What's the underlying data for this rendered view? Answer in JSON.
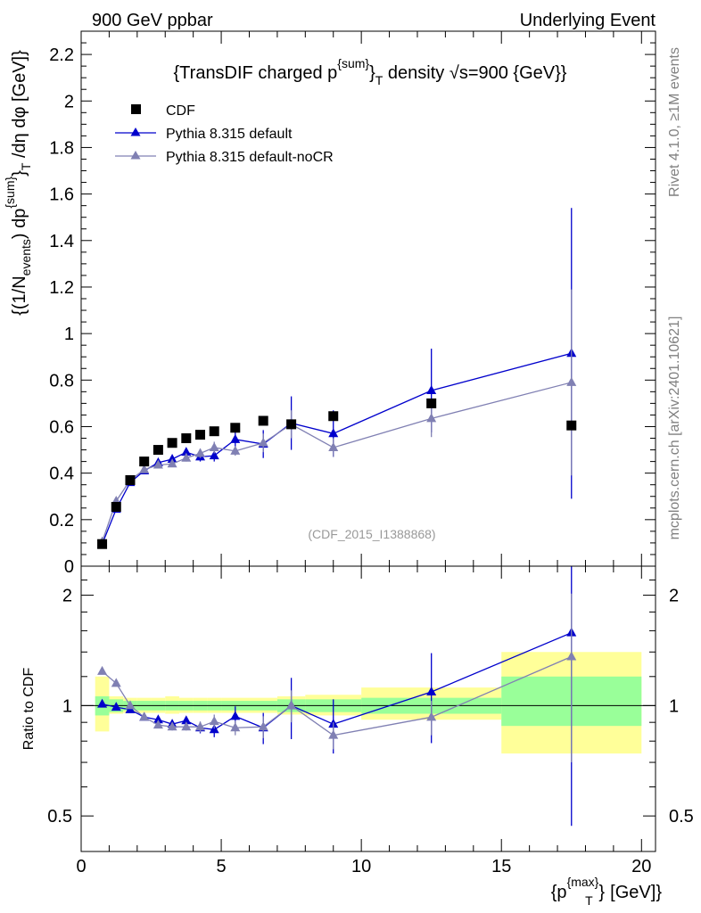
{
  "header": {
    "left": "900 GeV ppbar",
    "right": "Underlying Event"
  },
  "side_text": {
    "rivet": "Rivet 4.1.0, ≥1M events",
    "mcplots": "mcplots.cern.ch [arXiv:2401.10621]"
  },
  "chart_data": [
    {
      "type": "scatter",
      "panel": "main",
      "title": "{TransDIF charged p^{sum}_T density √s=900 {GeV}}",
      "title_parts": {
        "pre": "{TransDIF charged p",
        "sup": "{sum}",
        "mid": "}",
        "sub": "T",
        "post": " density √s=900 {GeV}}"
      },
      "ylabel": "{(1/N_{events}) dp^{sum}_T /dη dφ [GeV]}",
      "ylabel_parts": {
        "a": "{(1/N",
        "a_sub": "events",
        "b": ") dp",
        "b_sup": "{sum}",
        "c": "}",
        "c_sub": "T",
        "d": " /dη  dφ [GeV]}"
      },
      "ylim": [
        0,
        2.3
      ],
      "yticks": [
        0,
        0.2,
        0.4,
        0.6,
        0.8,
        1,
        1.2,
        1.4,
        1.6,
        1.8,
        2,
        2.2
      ],
      "ytick_labels": [
        "0",
        "0.2",
        "0.4",
        "0.6",
        "0.8",
        "1",
        "1.2",
        "1.4",
        "1.6",
        "1.8",
        "2",
        "2.2"
      ],
      "annotation": "(CDF_2015_I1388868)",
      "legend": [
        "CDF",
        "Pythia 8.315 default",
        "Pythia 8.315 default-noCR"
      ],
      "series": [
        {
          "name": "CDF",
          "color": "#000000",
          "marker": "square",
          "x": [
            0.75,
            1.25,
            1.75,
            2.25,
            2.75,
            3.25,
            3.75,
            4.25,
            4.75,
            5.5,
            6.5,
            7.5,
            9.0,
            12.5,
            17.5
          ],
          "y": [
            0.095,
            0.255,
            0.37,
            0.45,
            0.5,
            0.53,
            0.55,
            0.565,
            0.58,
            0.595,
            0.625,
            0.61,
            0.645,
            0.7,
            0.605
          ]
        },
        {
          "name": "Pythia 8.315 default",
          "color": "#0000cc",
          "marker": "triangle",
          "x": [
            0.75,
            1.25,
            1.75,
            2.25,
            2.75,
            3.25,
            3.75,
            4.25,
            4.75,
            5.5,
            6.5,
            7.5,
            9.0,
            12.5,
            17.5
          ],
          "y": [
            0.095,
            0.245,
            0.36,
            0.41,
            0.445,
            0.46,
            0.49,
            0.47,
            0.475,
            0.545,
            0.525,
            0.615,
            0.57,
            0.755,
            0.915
          ],
          "err": [
            0.005,
            0.01,
            0.01,
            0.01,
            0.01,
            0.01,
            0.015,
            0.02,
            0.025,
            0.035,
            0.06,
            0.115,
            0.1,
            0.18,
            0.625
          ]
        },
        {
          "name": "Pythia 8.315 default-noCR",
          "color": "#8080b3",
          "marker": "triangle",
          "x": [
            0.75,
            1.25,
            1.75,
            2.25,
            2.75,
            3.25,
            3.75,
            4.25,
            4.75,
            5.5,
            6.5,
            7.5,
            9.0,
            12.5,
            17.5
          ],
          "y": [
            0.105,
            0.28,
            0.37,
            0.415,
            0.435,
            0.44,
            0.465,
            0.485,
            0.51,
            0.495,
            0.53,
            0.61,
            0.51,
            0.635,
            0.79
          ],
          "err": [
            0.005,
            0.01,
            0.01,
            0.01,
            0.01,
            0.01,
            0.015,
            0.02,
            0.025,
            0.02,
            0.04,
            0.06,
            0.04,
            0.08,
            0.4
          ]
        }
      ]
    },
    {
      "type": "scatter",
      "panel": "ratio",
      "ylabel": "Ratio to CDF",
      "yscale": "log",
      "ylim": [
        0.4,
        2.4
      ],
      "yticks": [
        0.5,
        1,
        2
      ],
      "ytick_labels": [
        "0.5",
        "1",
        "2"
      ],
      "xlabel": "{p_T^{max}} [GeV]}",
      "xlabel_parts": {
        "pre": "{p",
        "sup": "{max}",
        "mid": "}",
        "sub": "T",
        "post": " [GeV]}"
      },
      "xlim": [
        0,
        20.5
      ],
      "xticks": [
        0,
        5,
        10,
        15,
        20
      ],
      "xtick_labels": [
        "0",
        "5",
        "10",
        "15",
        "20"
      ],
      "bands": {
        "edges": [
          0.5,
          1,
          1.5,
          2,
          2.5,
          3,
          3.5,
          4,
          4.5,
          5,
          6,
          7,
          8,
          10,
          15,
          20
        ],
        "stat_lo": [
          0.94,
          0.96,
          0.97,
          0.97,
          0.97,
          0.97,
          0.97,
          0.97,
          0.97,
          0.97,
          0.97,
          0.96,
          0.96,
          0.95,
          0.88
        ],
        "stat_hi": [
          1.06,
          1.04,
          1.03,
          1.03,
          1.03,
          1.03,
          1.03,
          1.03,
          1.03,
          1.03,
          1.03,
          1.04,
          1.04,
          1.05,
          1.2
        ],
        "tot_lo": [
          0.85,
          0.95,
          0.955,
          0.955,
          0.955,
          0.95,
          0.955,
          0.955,
          0.955,
          0.955,
          0.955,
          0.945,
          0.94,
          0.915,
          0.74
        ],
        "tot_hi": [
          1.2,
          1.06,
          1.05,
          1.05,
          1.05,
          1.06,
          1.05,
          1.05,
          1.05,
          1.05,
          1.05,
          1.06,
          1.07,
          1.12,
          1.4
        ]
      },
      "series": [
        {
          "name": "Pythia 8.315 default",
          "color": "#0000cc",
          "marker": "triangle",
          "x": [
            0.75,
            1.25,
            1.75,
            2.25,
            2.75,
            3.25,
            3.75,
            4.25,
            4.75,
            5.5,
            6.5,
            7.5,
            9.0,
            12.5,
            17.5
          ],
          "y": [
            1.01,
            0.99,
            0.975,
            0.93,
            0.915,
            0.89,
            0.91,
            0.87,
            0.86,
            0.935,
            0.87,
            1.0,
            0.89,
            1.09,
            1.58
          ],
          "err": [
            0.01,
            0.01,
            0.01,
            0.01,
            0.015,
            0.02,
            0.02,
            0.03,
            0.04,
            0.06,
            0.085,
            0.19,
            0.15,
            0.3,
            1.11
          ]
        },
        {
          "name": "Pythia 8.315 default-noCR",
          "color": "#8080b3",
          "marker": "triangle",
          "x": [
            0.75,
            1.25,
            1.75,
            2.25,
            2.75,
            3.25,
            3.75,
            4.25,
            4.75,
            5.5,
            6.5,
            7.5,
            9.0,
            12.5,
            17.5
          ],
          "y": [
            1.24,
            1.15,
            1.0,
            0.93,
            0.885,
            0.875,
            0.875,
            0.875,
            0.905,
            0.87,
            0.875,
            1.0,
            0.83,
            0.93,
            1.36
          ],
          "err": [
            0.01,
            0.01,
            0.01,
            0.01,
            0.015,
            0.02,
            0.02,
            0.03,
            0.04,
            0.04,
            0.06,
            0.1,
            0.07,
            0.1,
            0.66
          ]
        }
      ]
    }
  ]
}
